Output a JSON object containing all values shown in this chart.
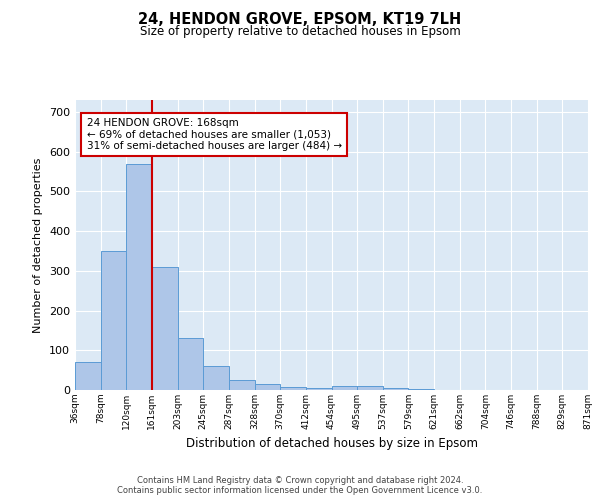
{
  "title": "24, HENDON GROVE, EPSOM, KT19 7LH",
  "subtitle": "Size of property relative to detached houses in Epsom",
  "xlabel": "Distribution of detached houses by size in Epsom",
  "ylabel": "Number of detached properties",
  "bar_values": [
    70,
    350,
    570,
    310,
    130,
    60,
    25,
    14,
    7,
    4,
    10,
    10,
    5,
    3,
    0,
    0,
    0,
    0,
    0,
    0
  ],
  "categories": [
    "36sqm",
    "78sqm",
    "120sqm",
    "161sqm",
    "203sqm",
    "245sqm",
    "287sqm",
    "328sqm",
    "370sqm",
    "412sqm",
    "454sqm",
    "495sqm",
    "537sqm",
    "579sqm",
    "621sqm",
    "662sqm",
    "704sqm",
    "746sqm",
    "788sqm",
    "829sqm",
    "871sqm"
  ],
  "bar_color": "#aec6e8",
  "bar_edge_color": "#5b9bd5",
  "vline_x": 3,
  "vline_color": "#cc0000",
  "annotation_box_text": "24 HENDON GROVE: 168sqm\n← 69% of detached houses are smaller (1,053)\n31% of semi-detached houses are larger (484) →",
  "annotation_box_color": "#cc0000",
  "ylim": [
    0,
    730
  ],
  "yticks": [
    0,
    100,
    200,
    300,
    400,
    500,
    600,
    700
  ],
  "footer": "Contains HM Land Registry data © Crown copyright and database right 2024.\nContains public sector information licensed under the Open Government Licence v3.0.",
  "background_color": "#dce9f5",
  "grid_color": "#ffffff",
  "fig_background": "#ffffff"
}
